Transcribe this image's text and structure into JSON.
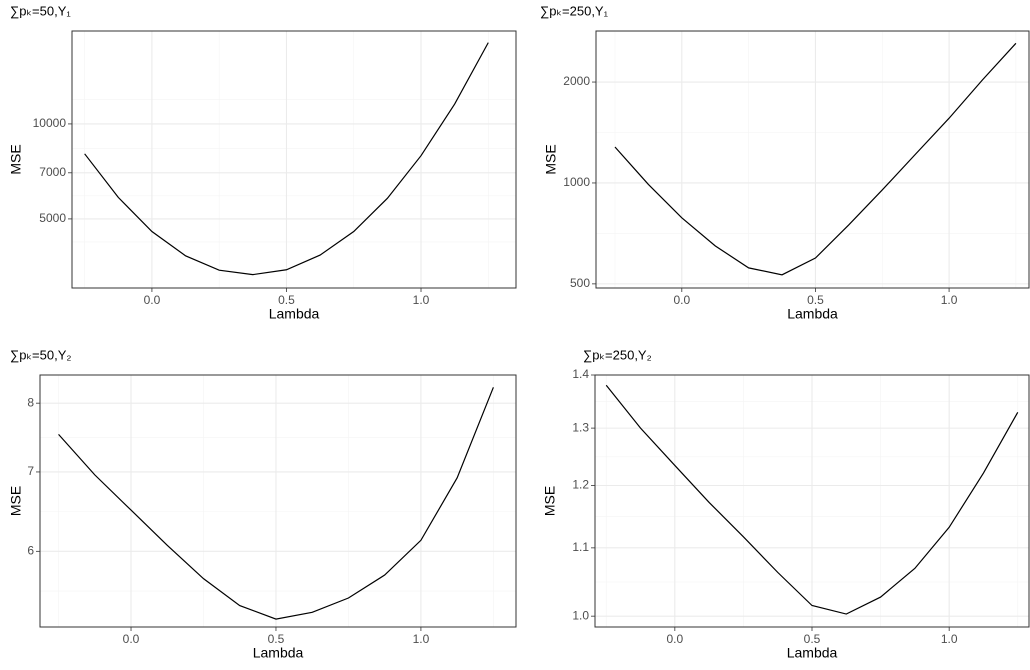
{
  "chart_data": [
    {
      "type": "line",
      "title": "∑pₖ=50,Y₁",
      "xlabel": "Lambda",
      "ylabel": "MSE",
      "log_y": true,
      "grid": true,
      "color": "#000000",
      "x": [
        -0.25,
        -0.125,
        0,
        0.125,
        0.25,
        0.375,
        0.5,
        0.625,
        0.75,
        0.875,
        1.0,
        1.125,
        1.25
      ],
      "values": [
        8040,
        5850,
        4560,
        3820,
        3440,
        3330,
        3450,
        3840,
        4560,
        5810,
        7930,
        11560,
        18100
      ],
      "xlim": [
        -0.297,
        1.353
      ],
      "ylim": [
        3020,
        19700
      ],
      "xticks": [
        {
          "value": 0,
          "label": "0.0"
        },
        0.5,
        {
          "value": 1,
          "label": "1.0"
        }
      ],
      "yticks": [
        5000,
        7000,
        10000
      ]
    },
    {
      "type": "line",
      "title": "∑pₖ=250,Y₁",
      "xlabel": "Lambda",
      "ylabel": "MSE",
      "log_y": true,
      "grid": true,
      "color": "#000000",
      "x": [
        -0.25,
        -0.125,
        0,
        0.125,
        0.25,
        0.375,
        0.5,
        0.625,
        0.75,
        0.875,
        1.0,
        1.125,
        1.25
      ],
      "values": [
        1280,
        990,
        787,
        649,
        558,
        532,
        597,
        750,
        953,
        1220,
        1560,
        2030,
        2610
      ],
      "xlim": [
        -0.321,
        1.299
      ],
      "ylim": [
        486,
        2840
      ],
      "xticks": [
        {
          "value": 0,
          "label": "0.0"
        },
        0.5,
        {
          "value": 1,
          "label": "1.0"
        }
      ],
      "yticks": [
        500,
        1000,
        2000
      ]
    },
    {
      "type": "line",
      "title": "∑pₖ=50,Y₂",
      "xlabel": "Lambda",
      "ylabel": "MSE",
      "log_y": true,
      "grid": true,
      "color": "#000000",
      "x": [
        -0.25,
        -0.125,
        0,
        0.125,
        0.25,
        0.375,
        0.5,
        0.625,
        0.75,
        0.875,
        1.0,
        1.125,
        1.25
      ],
      "values": [
        7.53,
        6.96,
        6.5,
        6.07,
        5.69,
        5.4,
        5.26,
        5.33,
        5.48,
        5.73,
        6.13,
        6.92,
        8.25
      ],
      "xlim": [
        -0.314,
        1.328
      ],
      "ylim": [
        5.18,
        8.45
      ],
      "xticks": [
        {
          "value": 0,
          "label": "0.0"
        },
        0.5,
        {
          "value": 1,
          "label": "1.0"
        }
      ],
      "yticks": [
        6,
        7,
        8
      ]
    },
    {
      "type": "line",
      "title": "∑pₖ=250,Y₂",
      "xlabel": "Lambda",
      "ylabel": "MSE",
      "log_y": true,
      "grid": true,
      "color": "#000000",
      "x": [
        -0.25,
        -0.125,
        0,
        0.125,
        0.25,
        0.375,
        0.5,
        0.625,
        0.75,
        0.875,
        1.0,
        1.125,
        1.25
      ],
      "values": [
        1.38,
        1.3,
        1.234,
        1.172,
        1.117,
        1.063,
        1.015,
        1.003,
        1.027,
        1.069,
        1.132,
        1.221,
        1.329
      ],
      "xlim": [
        -0.291,
        1.291
      ],
      "ylim": [
        0.985,
        1.4
      ],
      "xticks": [
        {
          "value": 0,
          "label": "0.0"
        },
        0.5,
        {
          "value": 1,
          "label": "1.0"
        }
      ],
      "yticks": [
        {
          "value": 1,
          "label": "1.0"
        },
        1.1,
        1.2,
        1.3,
        1.4
      ]
    }
  ]
}
